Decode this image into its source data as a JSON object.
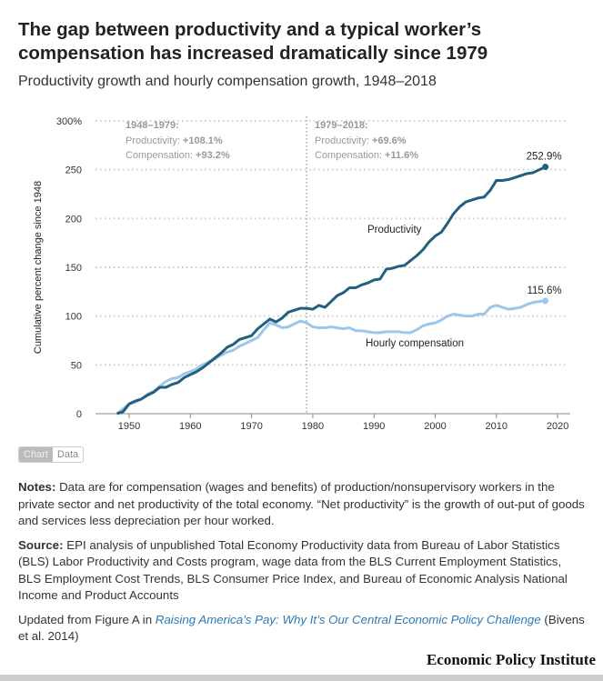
{
  "title": "The gap between productivity and a typical worker’s compensation has increased dramatically since 1979",
  "subtitle": "Productivity growth and hourly compensation growth, 1948–2018",
  "toggle": {
    "chart": "Chart",
    "data": "Data",
    "active": "Chart"
  },
  "chart_data": {
    "type": "line",
    "ylabel": "Cumulative percent change since 1948",
    "xlim": [
      1945,
      2021
    ],
    "ylim": [
      0,
      300
    ],
    "xticks": [
      "1950",
      "1960",
      "1970",
      "1980",
      "1990",
      "2000",
      "2010",
      "2020"
    ],
    "yticks": [
      "0",
      "50",
      "100",
      "150",
      "200",
      "250",
      "300%"
    ],
    "grid": true,
    "x": [
      1948,
      1949,
      1950,
      1951,
      1952,
      1953,
      1954,
      1955,
      1956,
      1957,
      1958,
      1959,
      1960,
      1961,
      1962,
      1963,
      1964,
      1965,
      1966,
      1967,
      1968,
      1969,
      1970,
      1971,
      1972,
      1973,
      1974,
      1975,
      1976,
      1977,
      1978,
      1979,
      1980,
      1981,
      1982,
      1983,
      1984,
      1985,
      1986,
      1987,
      1988,
      1989,
      1990,
      1991,
      1992,
      1993,
      1994,
      1995,
      1996,
      1997,
      1998,
      1999,
      2000,
      2001,
      2002,
      2003,
      2004,
      2005,
      2006,
      2007,
      2008,
      2009,
      2010,
      2011,
      2012,
      2013,
      2014,
      2015,
      2016,
      2017,
      2018
    ],
    "series": [
      {
        "name": "Productivity",
        "color": "#23607f",
        "end_label": "252.9%",
        "values": [
          0,
          2,
          10,
          13,
          15,
          19,
          22,
          27,
          27,
          30,
          32,
          37,
          40,
          43,
          47,
          52,
          57,
          62,
          68,
          71,
          76,
          78,
          80,
          87,
          92,
          97,
          94,
          98,
          104,
          106,
          108,
          108,
          107,
          111,
          109,
          115,
          121,
          124,
          129,
          129,
          132,
          134,
          137,
          138,
          148,
          149,
          151,
          152,
          157,
          162,
          168,
          176,
          182,
          186,
          195,
          205,
          212,
          217,
          219,
          221,
          222,
          229,
          239,
          239,
          240,
          242,
          244,
          246,
          247,
          250,
          252.9
        ]
      },
      {
        "name": "Hourly compensation",
        "color": "#9cc7ea",
        "end_label": "115.6%",
        "values": [
          0,
          5,
          10,
          12,
          15,
          20,
          23,
          28,
          33,
          36,
          37,
          41,
          43,
          46,
          50,
          53,
          56,
          60,
          63,
          65,
          69,
          72,
          75,
          78,
          86,
          93,
          91,
          88,
          89,
          92,
          95,
          93,
          89,
          88,
          88,
          89,
          88,
          87,
          88,
          85,
          85,
          84,
          83,
          83,
          84,
          84,
          84,
          83,
          83,
          86,
          90,
          92,
          93,
          96,
          100,
          102,
          101,
          100,
          100,
          102,
          102,
          109,
          111,
          109,
          107,
          108,
          109,
          112,
          114,
          115,
          115.6
        ]
      }
    ],
    "divider_year": 1979,
    "annotations": [
      {
        "period": "1948–1979:",
        "prod_label": "Productivity: ",
        "prod": "+108.1%",
        "comp_label": "Compensation: ",
        "comp": "+93.2%"
      },
      {
        "period": "1979–2018:",
        "prod_label": "Productivity: ",
        "prod": "+69.6%",
        "comp_label": "Compensation: ",
        "comp": "+11.6%"
      }
    ]
  },
  "notes": {
    "notes_label": "Notes:",
    "notes_text": " Data are for compensation (wages and benefits) of production/nonsupervisory workers in the private sector and net productivity of the total economy. “Net productivity” is the growth of out-put of goods and services less depreciation per hour worked.",
    "source_label": "Source:",
    "source_text": " EPI analysis of unpublished Total Economy Productivity data from Bureau of Labor Statistics (BLS) Labor Productivity and Costs program, wage data from the BLS Current Employment Statistics, BLS Employment Cost Trends, BLS Consumer Price Index, and Bureau of Economic Analysis National Income and Product Accounts",
    "updated_prefix": "Updated from Figure A in ",
    "link": "Raising America’s Pay: Why It’s Our Central Economic Policy Challenge",
    "updated_suffix": " (Bivens et al. 2014)"
  },
  "logo": "Economic Policy Institute"
}
